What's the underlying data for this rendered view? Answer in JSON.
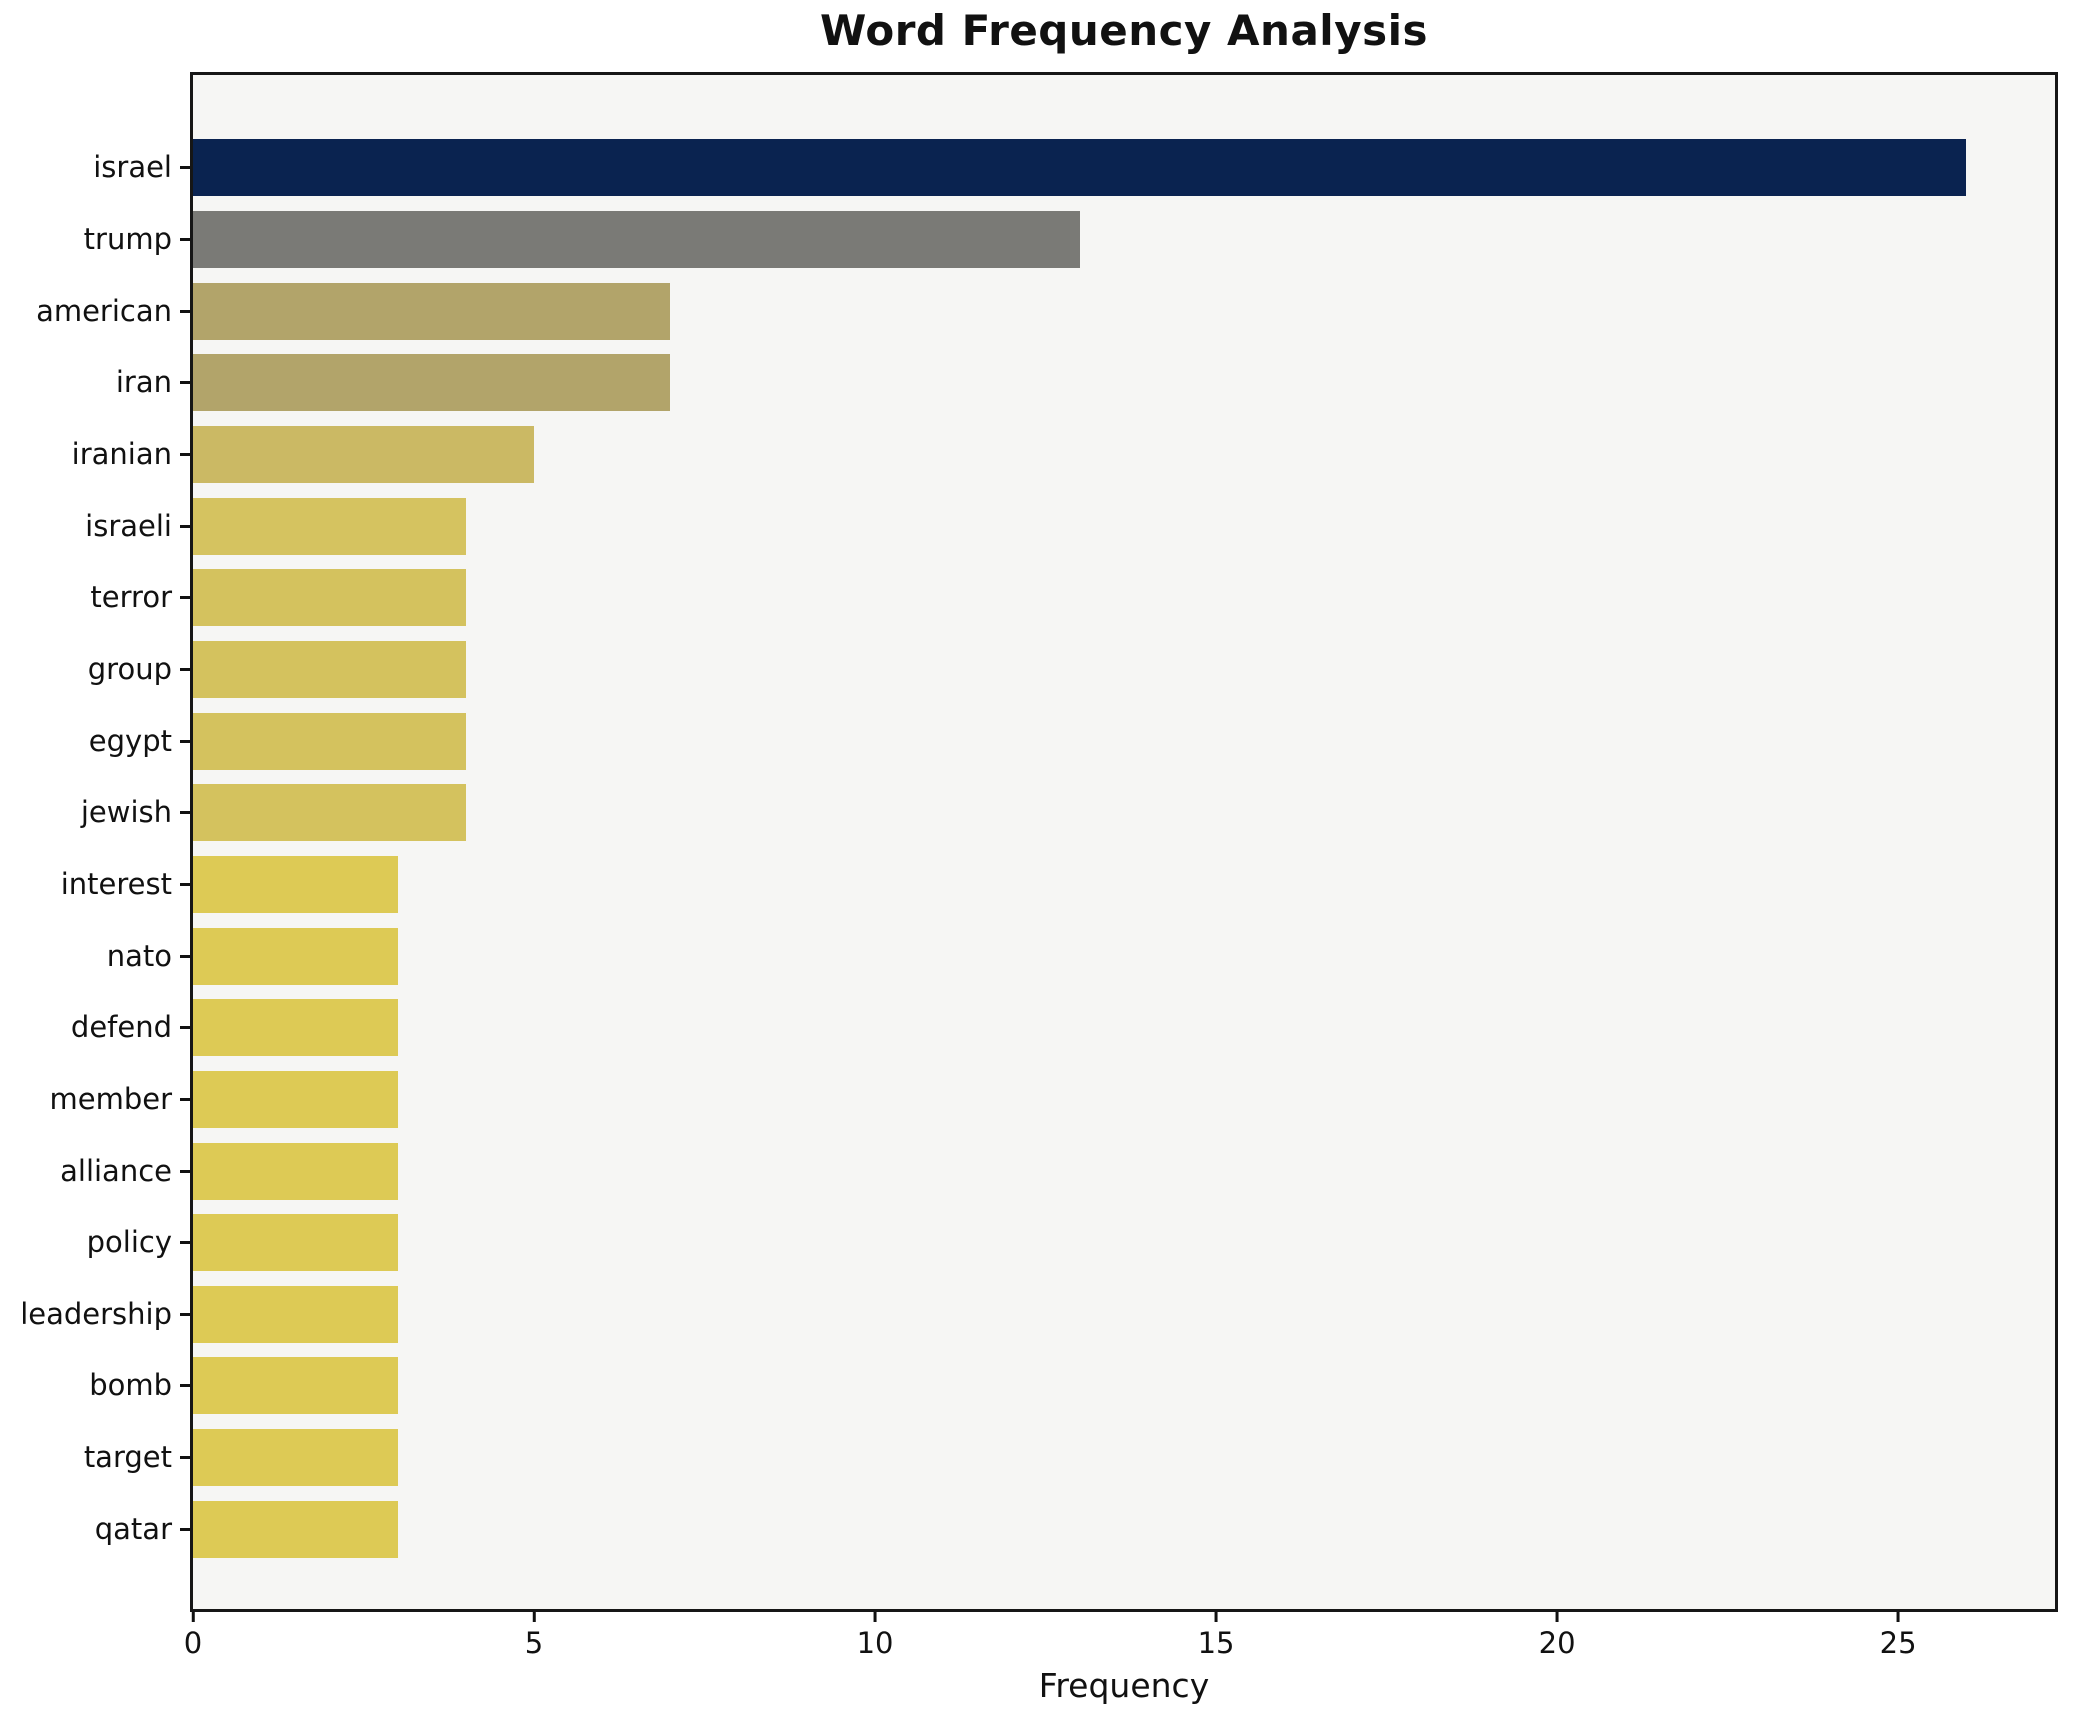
{
  "chart_data": {
    "type": "bar",
    "orientation": "horizontal",
    "title": "Word Frequency Analysis",
    "xlabel": "Frequency",
    "ylabel": "",
    "categories": [
      "israel",
      "trump",
      "american",
      "iran",
      "iranian",
      "israeli",
      "terror",
      "group",
      "egypt",
      "jewish",
      "interest",
      "nato",
      "defend",
      "member",
      "alliance",
      "policy",
      "leadership",
      "bomb",
      "target",
      "qatar"
    ],
    "values": [
      26,
      13,
      7,
      7,
      5,
      4,
      4,
      4,
      4,
      4,
      3,
      3,
      3,
      3,
      3,
      3,
      3,
      3,
      3,
      3
    ],
    "bar_colors": [
      "#0a2350",
      "#7a7a76",
      "#b2a46a",
      "#b2a46a",
      "#cbb964",
      "#d5c360",
      "#d4c25e",
      "#d4c25e",
      "#d4c25e",
      "#d4c25e",
      "#ddca55",
      "#ddca55",
      "#ddca55",
      "#ddca55",
      "#ddca55",
      "#ddca55",
      "#ddca55",
      "#ddca55",
      "#ddca55",
      "#ddca55"
    ],
    "xlim": [
      0,
      27.3
    ],
    "xticks": [
      0,
      5,
      10,
      15,
      20,
      25
    ],
    "xtick_labels": [
      "0",
      "5",
      "10",
      "15",
      "20",
      "25"
    ],
    "grid": false,
    "legend": null,
    "plot_background": "#f6f6f4",
    "figure_background": "#ffffff",
    "spine_color": "#161616"
  }
}
